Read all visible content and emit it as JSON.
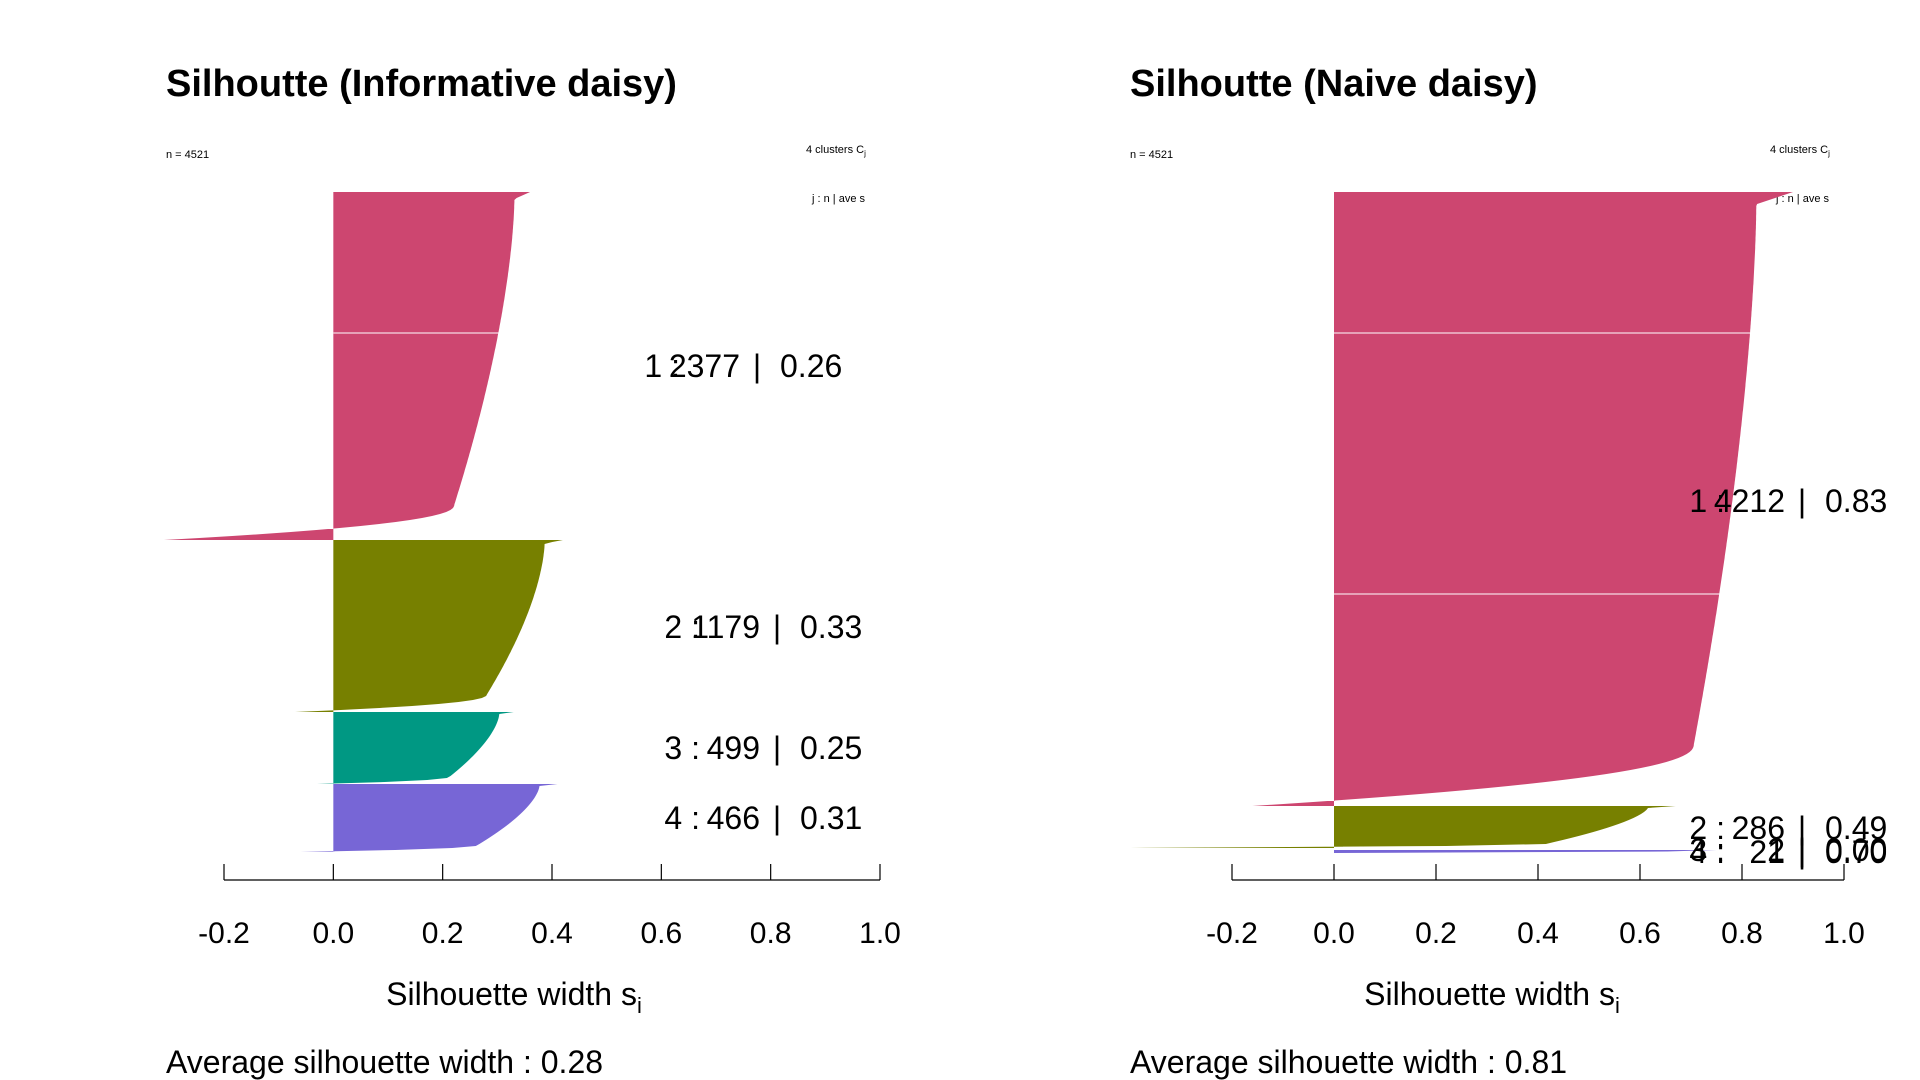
{
  "chart_data": [
    {
      "type": "silhouette",
      "title": "Silhoutte (Informative daisy)",
      "n_label": "n = 4521",
      "clusters_label": "4  clusters  C",
      "clusters_sub": "j",
      "legend_header": "j :  n  | ave    s",
      "xlabel": "Silhouette width s",
      "xlabel_sub": "i",
      "xlim": [
        -0.2,
        1.0
      ],
      "xticks": [
        "-0.2",
        "0.0",
        "0.2",
        "0.4",
        "0.6",
        "0.8",
        "1.0"
      ],
      "avg_text": "Average silhouette width :  0.28",
      "clusters": [
        {
          "j": "1 :",
          "n": "2377",
          "sep": "|",
          "ave": "0.26",
          "color": "#CD4670",
          "min": -0.31,
          "max": 0.36
        },
        {
          "j": "2 :",
          "n": "1179",
          "sep": "|",
          "ave": "0.33",
          "color": "#778000",
          "min": -0.07,
          "max": 0.42
        },
        {
          "j": "3 :",
          "n": "499",
          "sep": "|",
          "ave": "0.25",
          "color": "#009883",
          "min": -0.03,
          "max": 0.33
        },
        {
          "j": "4 :",
          "n": "466",
          "sep": "|",
          "ave": "0.31",
          "color": "#7766D6",
          "min": -0.06,
          "max": 0.41
        }
      ]
    },
    {
      "type": "silhouette",
      "title": "Silhoutte (Naive daisy)",
      "n_label": "n = 4521",
      "clusters_label": "4  clusters  C",
      "clusters_sub": "j",
      "legend_header": "j :  n  | ave    s",
      "xlabel": "Silhouette width s",
      "xlabel_sub": "i",
      "xlim": [
        -0.2,
        1.0
      ],
      "xticks": [
        "-0.2",
        "0.0",
        "0.2",
        "0.4",
        "0.6",
        "0.8",
        "1.0"
      ],
      "avg_text": "Average silhouette width :  0.81",
      "clusters": [
        {
          "j": "1 :",
          "n": "4212",
          "sep": "|",
          "ave": "0.83",
          "color": "#CD4670",
          "min": -0.16,
          "max": 0.9
        },
        {
          "j": "2 :",
          "n": "286",
          "sep": "|",
          "ave": "0.49",
          "color": "#778000",
          "min": -0.4,
          "max": 0.67
        },
        {
          "j": "3 :",
          "n": "2",
          "sep": "|",
          "ave": "0.00",
          "color": "#009883",
          "min": 0.0,
          "max": 0.0
        },
        {
          "j": "4 :",
          "n": "21",
          "sep": "|",
          "ave": "0.70",
          "color": "#7766D6",
          "min": 0.0,
          "max": 0.75
        }
      ]
    }
  ]
}
